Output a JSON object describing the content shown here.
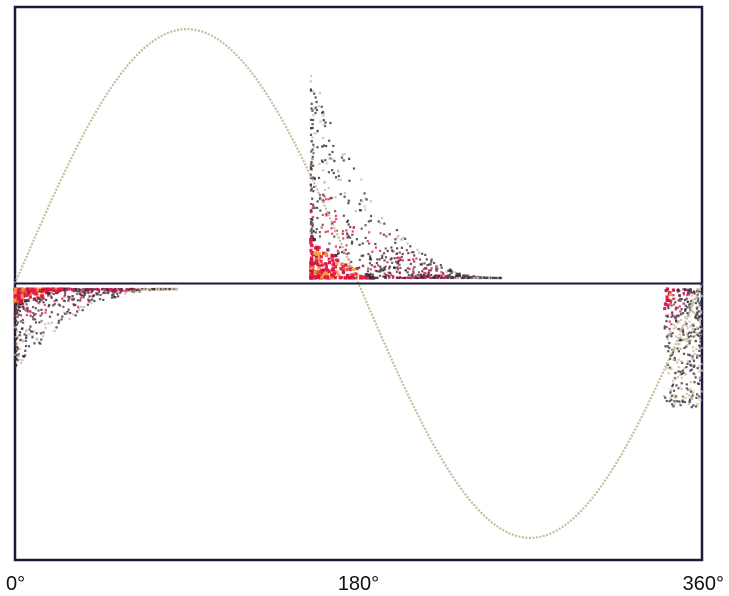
{
  "chart_data": {
    "type": "scatter",
    "title": "",
    "xlabel": "",
    "ylabel": "",
    "xlim": [
      0,
      360
    ],
    "ylim": [
      -1,
      1
    ],
    "grid": false,
    "legend": "none",
    "x_ticks": [
      {
        "value": 0,
        "label": "0°"
      },
      {
        "value": 180,
        "label": "180°"
      },
      {
        "value": 360,
        "label": "360°"
      }
    ],
    "reference_line": {
      "type": "sine",
      "amplitude": 0.92,
      "color": "#c8bc9c"
    },
    "zero_line": {
      "color": "#1a1a3a"
    },
    "frame_color": "#1a1a3a",
    "clusters": [
      {
        "name": "",
        "x_range": [
          155,
          255
        ],
        "y_range": [
          0.02,
          0.78
        ],
        "shape": "decay-from-left",
        "density": 900,
        "colors": [
          "#e8184a",
          "#d0103c",
          "#f0a030",
          "#3a2a3a",
          "#5a3a4a",
          "#c8bc9c"
        ]
      },
      {
        "name": "",
        "x_range": [
          0,
          85
        ],
        "y_range": [
          -0.02,
          -0.32
        ],
        "shape": "decay-from-left-negative",
        "density": 700,
        "colors": [
          "#e8184a",
          "#d0103c",
          "#f0a030",
          "#3a2a3a",
          "#5a3a4a",
          "#c8bc9c"
        ]
      },
      {
        "name": "",
        "x_range": [
          340,
          360
        ],
        "y_range": [
          -0.02,
          -0.45
        ],
        "shape": "band-negative",
        "density": 420,
        "colors": [
          "#e8184a",
          "#d0103c",
          "#f0a030",
          "#3a2a3a",
          "#5a3a4a",
          "#c8bc9c"
        ]
      }
    ]
  }
}
